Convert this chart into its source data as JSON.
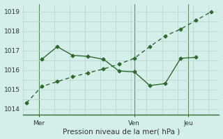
{
  "line1_x": [
    0,
    1,
    2,
    3,
    4,
    5,
    6,
    7,
    8,
    9,
    10,
    11,
    12
  ],
  "line1_y": [
    1014.3,
    1015.15,
    1015.4,
    1015.65,
    1015.85,
    1016.05,
    1016.3,
    1016.6,
    1017.2,
    1017.75,
    1018.1,
    1018.55,
    1019.0
  ],
  "line2_x": [
    1,
    2,
    3,
    4,
    5,
    6,
    7,
    8,
    9,
    10,
    11
  ],
  "line2_y": [
    1016.55,
    1017.2,
    1016.75,
    1016.7,
    1016.55,
    1015.95,
    1015.9,
    1015.2,
    1015.3,
    1016.6,
    1016.65
  ],
  "color": "#2d6a2d",
  "bg_color": "#d4eeea",
  "grid_color": "#b8d8d0",
  "axis_color": "#2d6a2d",
  "ylabel_ticks": [
    1014,
    1015,
    1016,
    1017,
    1018,
    1019
  ],
  "xtick_positions": [
    0.8,
    7,
    10.5
  ],
  "xtick_labels": [
    "Mer",
    "Ven",
    "Jeu"
  ],
  "vline_positions": [
    0.8,
    7,
    10.5
  ],
  "xlabel": "Pression niveau de la mer( hPa )",
  "ylim": [
    1013.7,
    1019.4
  ],
  "xlim": [
    -0.2,
    12.5
  ],
  "figsize": [
    3.2,
    2.0
  ],
  "dpi": 100
}
